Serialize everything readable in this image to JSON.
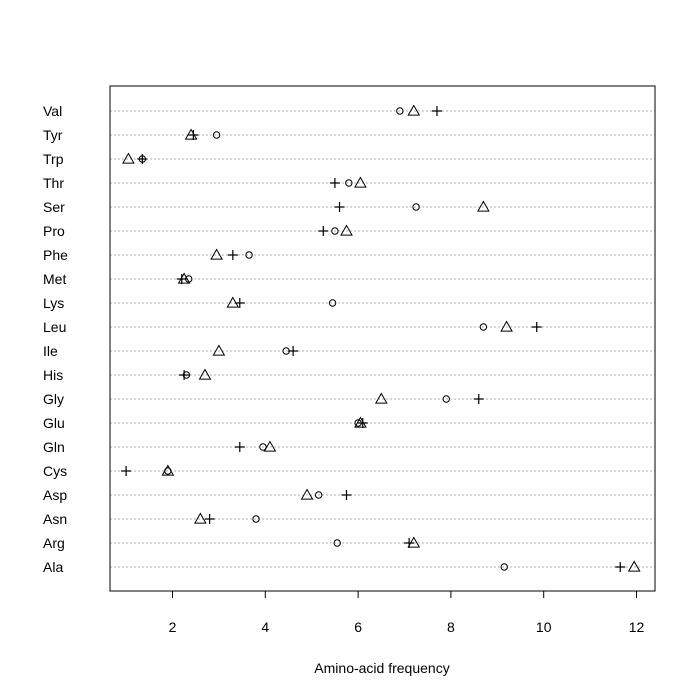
{
  "chart_data": {
    "type": "scatter",
    "subtype": "dotchart",
    "title": "",
    "xlabel": "Amino-acid frequency",
    "ylabel": "",
    "xlim": [
      0.6,
      12.4
    ],
    "xticks": [
      2,
      4,
      6,
      8,
      10,
      12
    ],
    "grid": "dotted horizontal lines per category",
    "legend": "none",
    "categories": [
      "Val",
      "Tyr",
      "Trp",
      "Thr",
      "Ser",
      "Pro",
      "Phe",
      "Met",
      "Lys",
      "Leu",
      "Ile",
      "His",
      "Gly",
      "Glu",
      "Gln",
      "Cys",
      "Asp",
      "Asn",
      "Arg",
      "Ala"
    ],
    "series": [
      {
        "marker": "circle",
        "values": [
          6.9,
          2.95,
          1.35,
          5.8,
          7.25,
          5.5,
          3.65,
          2.35,
          5.45,
          8.7,
          4.45,
          2.3,
          7.9,
          6.0,
          3.95,
          1.9,
          5.15,
          3.8,
          5.55,
          9.15
        ]
      },
      {
        "marker": "triangle",
        "values": [
          7.2,
          2.4,
          1.05,
          6.05,
          8.7,
          5.75,
          2.95,
          2.25,
          3.3,
          9.2,
          3.0,
          2.7,
          6.5,
          6.05,
          4.1,
          1.9,
          4.9,
          2.6,
          7.2,
          11.95
        ]
      },
      {
        "marker": "plus",
        "values": [
          7.7,
          2.45,
          1.35,
          5.5,
          5.6,
          5.25,
          3.3,
          2.2,
          3.45,
          9.85,
          4.6,
          2.25,
          8.6,
          6.1,
          3.45,
          1.0,
          5.75,
          2.8,
          7.1,
          11.65
        ]
      }
    ]
  }
}
